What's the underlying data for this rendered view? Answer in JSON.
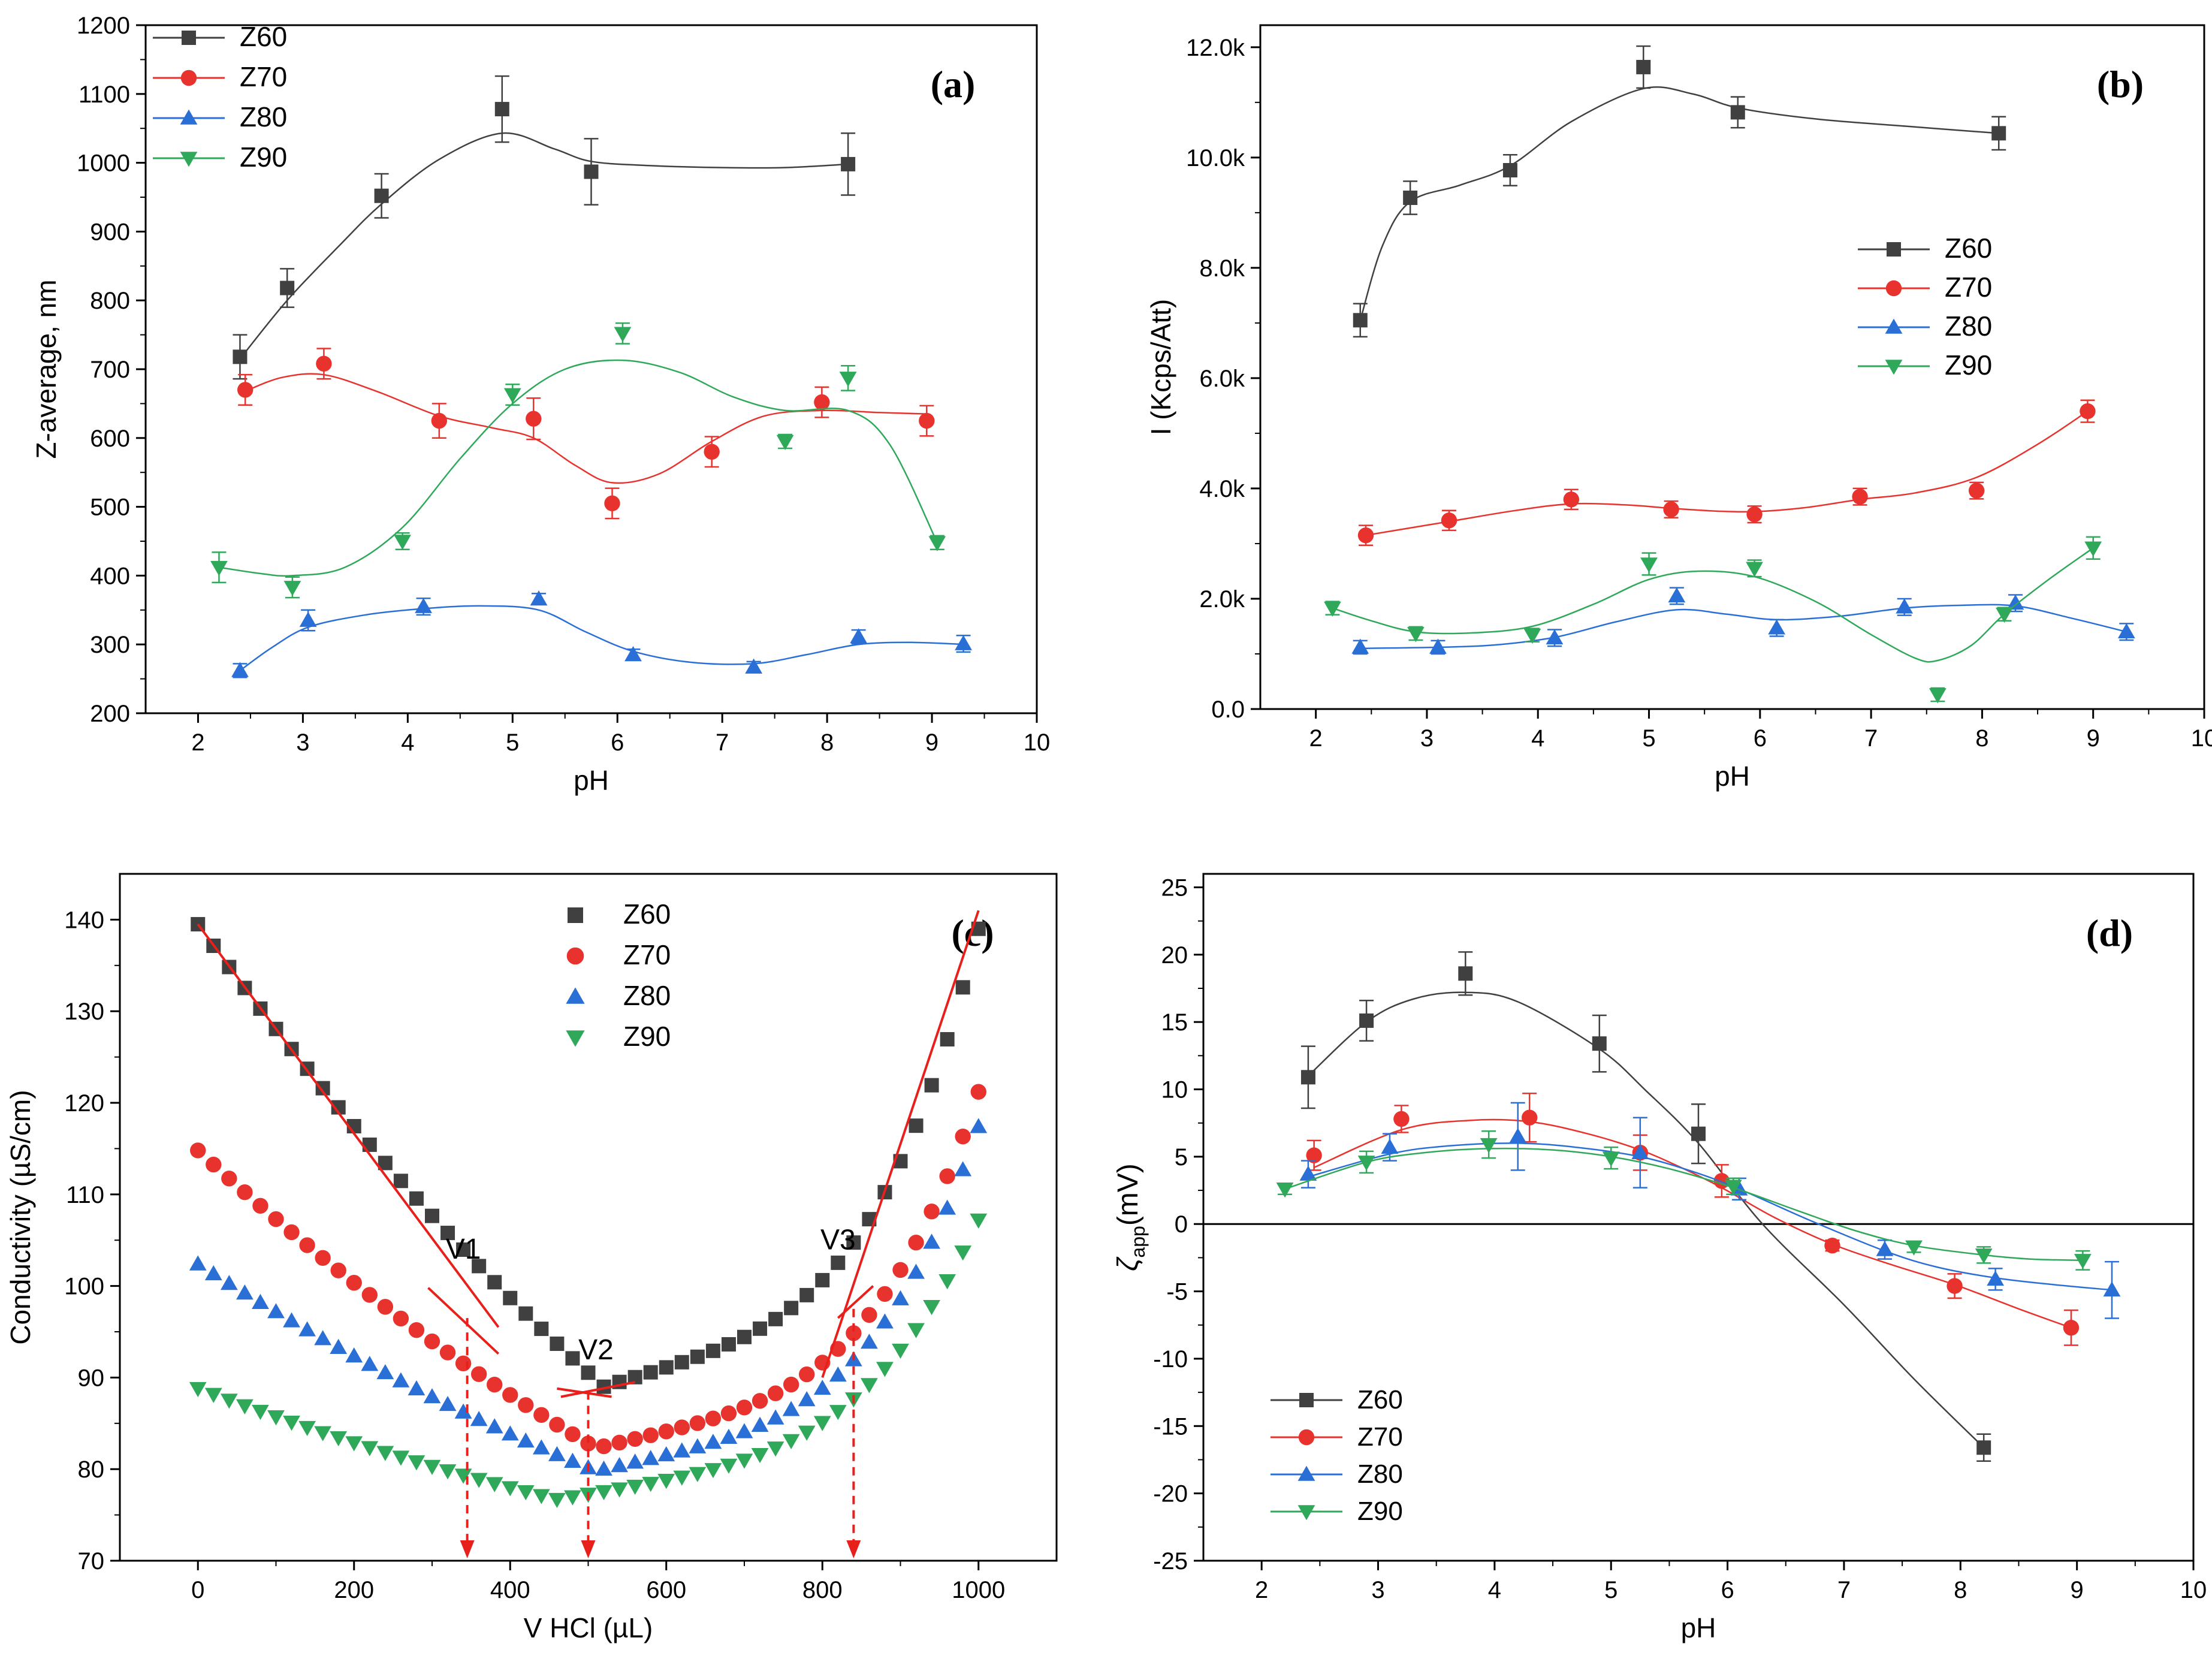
{
  "figure": {
    "panel_count": 4
  },
  "chart_data": [
    {
      "id": "a",
      "type": "scatter",
      "panel_label": "(a)",
      "xlabel": "pH",
      "ylabel": "Z-average, nm",
      "xlim": [
        1.5,
        10
      ],
      "ylim": [
        200,
        1200
      ],
      "xticks": [
        2,
        3,
        4,
        5,
        6,
        7,
        8,
        9,
        10
      ],
      "yticks": [
        200,
        300,
        400,
        500,
        600,
        700,
        800,
        900,
        1000,
        1100,
        1200
      ],
      "legend_position": "top-left",
      "series": [
        {
          "name": "Z60",
          "color": "#404040",
          "marker": "square",
          "x": [
            2.4,
            2.85,
            3.75,
            4.9,
            5.75,
            8.2
          ],
          "y": [
            718,
            818,
            952,
            1078,
            987,
            998
          ],
          "err": [
            32,
            28,
            32,
            48,
            48,
            45
          ],
          "fit_x": [
            2.4,
            2.85,
            3.35,
            3.75,
            4.3,
            4.9,
            5.4,
            5.75,
            6.3,
            7.0,
            7.6,
            8.2
          ],
          "fit_y": [
            715,
            800,
            880,
            940,
            1005,
            1043,
            1020,
            1002,
            996,
            993,
            993,
            998
          ]
        },
        {
          "name": "Z70",
          "color": "#e8322e",
          "marker": "circle",
          "x": [
            2.45,
            3.2,
            4.3,
            5.2,
            5.95,
            6.9,
            7.95,
            8.95
          ],
          "y": [
            670,
            708,
            625,
            628,
            505,
            580,
            652,
            625
          ],
          "err": [
            22,
            22,
            25,
            30,
            22,
            22,
            22,
            22
          ],
          "fit_x": [
            2.45,
            2.8,
            3.2,
            3.7,
            4.3,
            4.8,
            5.2,
            5.6,
            5.95,
            6.4,
            6.9,
            7.4,
            7.95,
            8.5,
            8.95
          ],
          "fit_y": [
            668,
            688,
            692,
            668,
            632,
            615,
            600,
            560,
            535,
            548,
            595,
            632,
            640,
            637,
            635
          ]
        },
        {
          "name": "Z80",
          "color": "#2a6fd6",
          "marker": "triangle-up",
          "x": [
            2.4,
            3.05,
            4.15,
            5.25,
            6.15,
            7.3,
            8.3,
            9.3
          ],
          "y": [
            262,
            335,
            355,
            366,
            285,
            267,
            311,
            301
          ],
          "err": [
            10,
            15,
            12,
            8,
            8,
            8,
            10,
            12
          ],
          "fit_x": [
            2.4,
            2.7,
            3.05,
            3.6,
            4.15,
            4.7,
            5.25,
            5.7,
            6.15,
            6.7,
            7.3,
            7.8,
            8.3,
            8.8,
            9.3
          ],
          "fit_y": [
            262,
            295,
            325,
            343,
            352,
            356,
            350,
            318,
            290,
            274,
            272,
            285,
            300,
            303,
            300
          ]
        },
        {
          "name": "Z90",
          "color": "#2fa85a",
          "marker": "triangle-down",
          "x": [
            2.2,
            2.9,
            3.95,
            5.0,
            6.05,
            7.6,
            8.2,
            9.05
          ],
          "y": [
            412,
            383,
            450,
            663,
            752,
            595,
            687,
            448
          ],
          "err": [
            22,
            15,
            12,
            15,
            15,
            10,
            18,
            10
          ],
          "fit_x": [
            2.2,
            2.6,
            2.9,
            3.4,
            3.95,
            4.5,
            5.0,
            5.5,
            6.05,
            6.6,
            7.1,
            7.6,
            8.2,
            8.6,
            9.05
          ],
          "fit_y": [
            412,
            403,
            400,
            412,
            470,
            570,
            650,
            700,
            713,
            695,
            660,
            640,
            640,
            590,
            448
          ]
        }
      ]
    },
    {
      "id": "b",
      "type": "scatter",
      "panel_label": "(b)",
      "xlabel": "pH",
      "ylabel": "I (Kcps/Att)",
      "xlim": [
        1.5,
        10
      ],
      "ylim": [
        0,
        12400
      ],
      "xticks": [
        2,
        3,
        4,
        5,
        6,
        7,
        8,
        9,
        10
      ],
      "yticks": [
        0,
        2000,
        4000,
        6000,
        8000,
        10000,
        12000
      ],
      "ytick_labels": [
        "0.0",
        "2.0k",
        "4.0k",
        "6.0k",
        "8.0k",
        "10.0k",
        "12.0k"
      ],
      "legend_position": "center-right",
      "series": [
        {
          "name": "Z60",
          "color": "#404040",
          "marker": "square",
          "x": [
            2.4,
            2.85,
            3.75,
            4.95,
            5.8,
            8.15
          ],
          "y": [
            7050,
            9270,
            9770,
            11640,
            10820,
            10440
          ],
          "err": [
            300,
            300,
            280,
            380,
            280,
            300
          ],
          "fit_x": [
            2.4,
            2.6,
            2.85,
            3.3,
            3.75,
            4.3,
            4.95,
            5.4,
            5.8,
            6.5,
            7.3,
            8.15
          ],
          "fit_y": [
            7050,
            8400,
            9200,
            9500,
            9850,
            10650,
            11250,
            11150,
            10900,
            10700,
            10570,
            10440
          ]
        },
        {
          "name": "Z70",
          "color": "#e8322e",
          "marker": "circle",
          "x": [
            2.45,
            3.2,
            4.3,
            5.2,
            5.95,
            6.9,
            7.95,
            8.95
          ],
          "y": [
            3150,
            3420,
            3800,
            3620,
            3530,
            3850,
            3960,
            5400
          ],
          "err": [
            180,
            180,
            180,
            150,
            150,
            150,
            150,
            200
          ],
          "fit_x": [
            2.45,
            3.2,
            3.8,
            4.3,
            4.8,
            5.2,
            5.6,
            5.95,
            6.4,
            6.9,
            7.4,
            7.95,
            8.5,
            8.95
          ],
          "fit_y": [
            3150,
            3400,
            3600,
            3720,
            3700,
            3640,
            3590,
            3580,
            3650,
            3800,
            3920,
            4200,
            4800,
            5400
          ]
        },
        {
          "name": "Z80",
          "color": "#2a6fd6",
          "marker": "triangle-up",
          "x": [
            2.4,
            3.1,
            4.15,
            5.25,
            6.15,
            7.3,
            8.3,
            9.3
          ],
          "y": [
            1120,
            1120,
            1290,
            2050,
            1470,
            1850,
            1920,
            1400
          ],
          "err": [
            120,
            120,
            150,
            150,
            150,
            150,
            150,
            150
          ],
          "fit_x": [
            2.4,
            3.1,
            3.6,
            4.15,
            4.7,
            5.25,
            5.7,
            6.15,
            6.7,
            7.3,
            7.8,
            8.3,
            8.8,
            9.3
          ],
          "fit_y": [
            1100,
            1120,
            1160,
            1300,
            1580,
            1800,
            1720,
            1620,
            1680,
            1830,
            1880,
            1870,
            1650,
            1400
          ]
        },
        {
          "name": "Z90",
          "color": "#2fa85a",
          "marker": "triangle-down",
          "x": [
            2.15,
            2.9,
            3.95,
            5.0,
            5.95,
            7.6,
            8.2,
            9.0
          ],
          "y": [
            1830,
            1370,
            1340,
            2630,
            2550,
            260,
            1720,
            2920
          ],
          "err": [
            120,
            120,
            120,
            200,
            150,
            120,
            120,
            200
          ],
          "fit_x": [
            2.15,
            2.5,
            2.9,
            3.4,
            3.95,
            4.5,
            5.0,
            5.45,
            5.95,
            6.5,
            7.0,
            7.4,
            7.6,
            7.9,
            8.2,
            8.6,
            9.0
          ],
          "fit_y": [
            1830,
            1600,
            1400,
            1380,
            1500,
            1900,
            2350,
            2500,
            2400,
            1950,
            1350,
            920,
            880,
            1150,
            1720,
            2350,
            2920
          ]
        }
      ]
    },
    {
      "id": "c",
      "type": "scatter",
      "panel_label": "(c)",
      "xlabel": "V HCl (µL)",
      "ylabel": "Conductivity (µS/cm)",
      "xlim": [
        -100,
        1100
      ],
      "ylim": [
        70,
        145
      ],
      "xticks": [
        0,
        200,
        400,
        600,
        800,
        1000
      ],
      "yticks": [
        70,
        80,
        90,
        100,
        110,
        120,
        130,
        140
      ],
      "legend_position": "top-center",
      "annotations": [
        {
          "text": "V1",
          "x": 340,
          "y": 103
        },
        {
          "text": "V2",
          "x": 510,
          "y": 92
        },
        {
          "text": "V3",
          "x": 820,
          "y": 104
        }
      ],
      "equivalence_volumes": [
        345,
        500,
        840
      ],
      "fit_lines": [
        {
          "x": [
            0,
            385
          ],
          "y": [
            139.5,
            95.5
          ]
        },
        {
          "x": [
            295,
            385
          ],
          "y": [
            99.8,
            92.6
          ]
        },
        {
          "x": [
            465,
            560
          ],
          "y": [
            87.9,
            89.5
          ]
        },
        {
          "x": [
            460,
            530
          ],
          "y": [
            88.8,
            87.9
          ]
        },
        {
          "x": [
            820,
            865
          ],
          "y": [
            96.5,
            100
          ]
        },
        {
          "x": [
            800,
            1000
          ],
          "y": [
            90,
            141
          ]
        }
      ],
      "series": [
        {
          "name": "Z60",
          "color": "#404040",
          "marker": "square",
          "v_min": 520,
          "y_min": 89,
          "y_start": 139.5,
          "y_end": 139
        },
        {
          "name": "Z70",
          "color": "#e8322e",
          "marker": "circle",
          "v_min": 510,
          "y_min": 82.3,
          "y_start": 114.8,
          "y_end": 121.2
        },
        {
          "name": "Z80",
          "color": "#2a6fd6",
          "marker": "triangle-up",
          "v_min": 510,
          "y_min": 79.8,
          "y_start": 102.4,
          "y_end": 117.4
        },
        {
          "name": "Z90",
          "color": "#2fa85a",
          "marker": "triangle-down",
          "v_min": 460,
          "y_min": 76.7,
          "y_start": 88.8,
          "y_end": 107.2
        }
      ]
    },
    {
      "id": "d",
      "type": "scatter",
      "panel_label": "(d)",
      "xlabel": "pH",
      "ylabel_main": "ζ",
      "ylabel_sub": "app",
      "ylabel_unit": "(mV)",
      "xlim": [
        1.5,
        10
      ],
      "ylim": [
        -25,
        26
      ],
      "xticks": [
        2,
        3,
        4,
        5,
        6,
        7,
        8,
        9,
        10
      ],
      "yticks": [
        -25,
        -20,
        -15,
        -10,
        -5,
        0,
        5,
        10,
        15,
        20,
        25
      ],
      "zero_line": true,
      "legend_position": "bottom-left",
      "series": [
        {
          "name": "Z60",
          "color": "#404040",
          "marker": "square",
          "x": [
            2.4,
            2.9,
            3.75,
            4.9,
            5.75,
            8.2
          ],
          "y": [
            10.9,
            15.1,
            18.6,
            13.4,
            6.7,
            -16.6
          ],
          "err": [
            2.3,
            1.5,
            1.6,
            2.1,
            2.2,
            1.0
          ],
          "fit_x": [
            2.4,
            2.9,
            3.3,
            3.75,
            4.2,
            4.9,
            5.3,
            5.75,
            6.3,
            7.0,
            7.6,
            8.2
          ],
          "fit_y": [
            11,
            15,
            16.7,
            17.2,
            16.5,
            13,
            9.9,
            6,
            0,
            -6,
            -11.5,
            -16.6
          ]
        },
        {
          "name": "Z70",
          "color": "#e8322e",
          "marker": "circle",
          "x": [
            2.45,
            3.2,
            4.3,
            5.25,
            5.95,
            6.9,
            7.95,
            8.95
          ],
          "y": [
            5.1,
            7.8,
            7.9,
            5.3,
            3.2,
            -1.6,
            -4.6,
            -7.7
          ],
          "err": [
            1.1,
            1.0,
            1.8,
            1.3,
            1.2,
            0.4,
            0.9,
            1.3
          ],
          "fit_x": [
            2.45,
            3.2,
            3.8,
            4.3,
            4.8,
            5.25,
            5.6,
            5.95,
            6.4,
            6.9,
            7.4,
            7.95,
            8.5,
            8.95
          ],
          "fit_y": [
            4.2,
            7.0,
            7.7,
            7.6,
            6.7,
            5.5,
            4.2,
            2.7,
            0.5,
            -1.5,
            -3.0,
            -4.5,
            -6.3,
            -7.7
          ]
        },
        {
          "name": "Z80",
          "color": "#2a6fd6",
          "marker": "triangle-up",
          "x": [
            2.4,
            3.1,
            4.2,
            5.25,
            6.1,
            7.35,
            8.3,
            9.3
          ],
          "y": [
            3.7,
            5.7,
            6.5,
            5.3,
            2.6,
            -1.9,
            -4.1,
            -4.9
          ],
          "err": [
            1.0,
            1.0,
            2.5,
            2.6,
            0.8,
            0.7,
            0.8,
            2.1
          ],
          "fit_x": [
            2.4,
            3.1,
            3.6,
            4.2,
            4.7,
            5.25,
            5.7,
            6.1,
            6.7,
            7.35,
            7.8,
            8.3,
            8.8,
            9.3
          ],
          "fit_y": [
            3.5,
            5.2,
            5.8,
            6.0,
            5.7,
            5.0,
            3.9,
            2.6,
            0.3,
            -2.0,
            -3.2,
            -4.0,
            -4.5,
            -4.9
          ]
        },
        {
          "name": "Z90",
          "color": "#2fa85a",
          "marker": "triangle-down",
          "x": [
            2.2,
            2.9,
            3.95,
            5.0,
            6.05,
            7.6,
            8.2,
            9.05
          ],
          "y": [
            2.6,
            4.6,
            5.9,
            4.9,
            2.8,
            -1.7,
            -2.3,
            -2.7
          ],
          "err": [
            0.4,
            0.8,
            1.0,
            0.8,
            0.6,
            0.4,
            0.6,
            0.7
          ],
          "fit_x": [
            2.2,
            2.9,
            3.4,
            3.95,
            4.5,
            5.0,
            5.5,
            6.05,
            6.6,
            7.1,
            7.6,
            8.2,
            8.6,
            9.05
          ],
          "fit_y": [
            2.6,
            4.6,
            5.3,
            5.6,
            5.5,
            5.0,
            4.1,
            2.7,
            1.0,
            -0.5,
            -1.6,
            -2.3,
            -2.6,
            -2.7
          ]
        }
      ]
    }
  ]
}
